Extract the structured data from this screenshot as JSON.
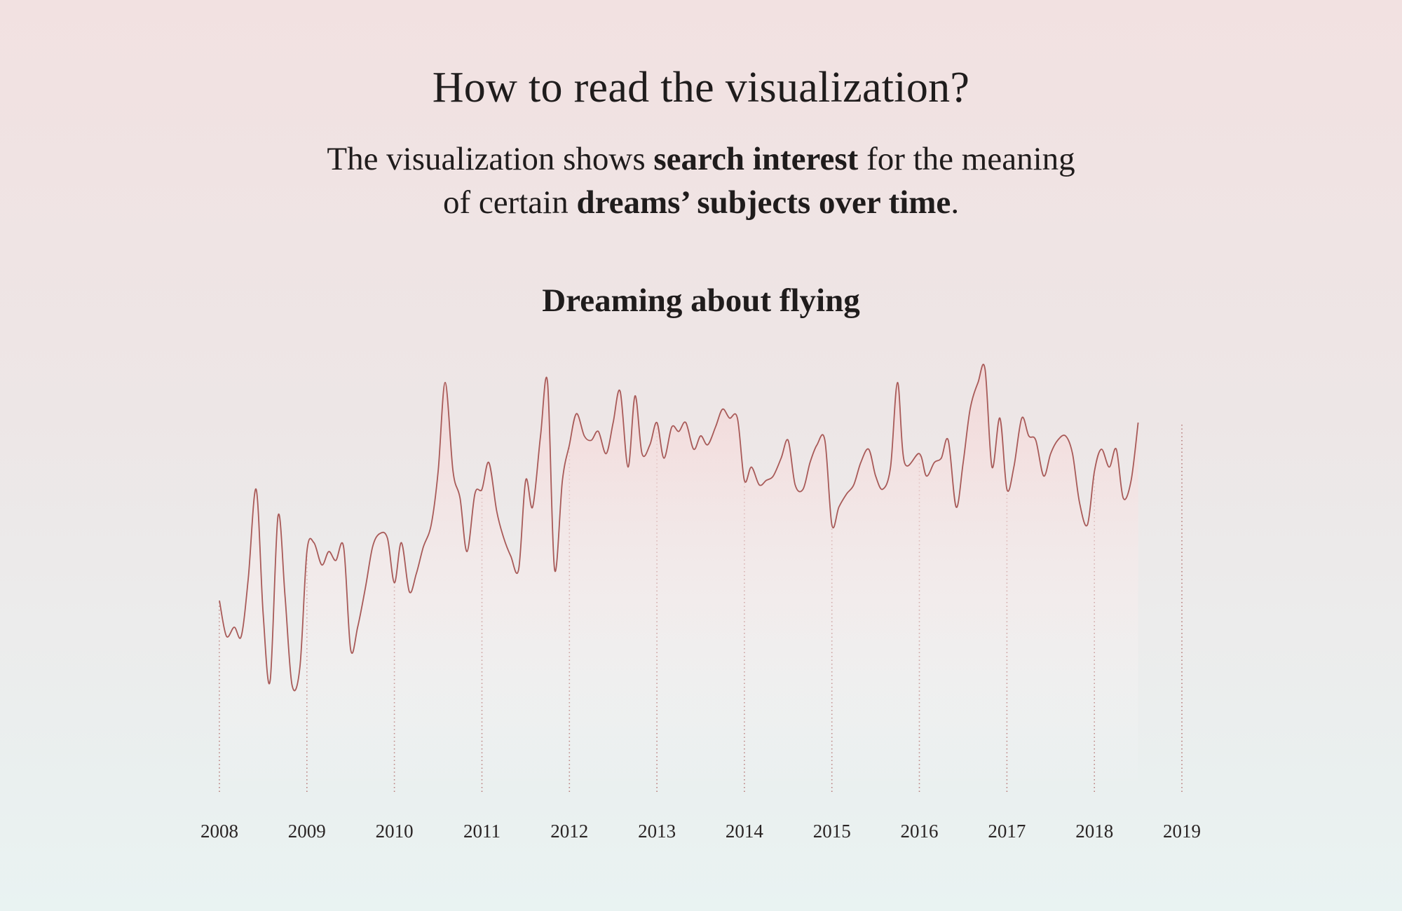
{
  "heading": "How to read the visualization?",
  "intro": {
    "part1": "The visualization shows ",
    "bold1": "search interest",
    "part2": " for the meaning",
    "part3": "of certain ",
    "bold2": "dreams’ subjects over time",
    "part4": "."
  },
  "colors": {
    "line": "#a85a58",
    "area_top": "#f2d6d6",
    "gridline": "#b77c7a",
    "text": "#1f1c1c"
  },
  "chart_data": {
    "type": "line",
    "title": "Dreaming about flying",
    "xlabel": "",
    "ylabel": "",
    "xlim": [
      2008,
      2019
    ],
    "ylim": [
      0,
      100
    ],
    "ticks": [
      "2008",
      "2009",
      "2010",
      "2011",
      "2012",
      "2013",
      "2014",
      "2015",
      "2016",
      "2017",
      "2018",
      "2019"
    ],
    "grid": "vertical dotted lines at each year",
    "series": [
      {
        "values": [
          [
            2008.0,
            43
          ],
          [
            2008.08,
            35
          ],
          [
            2008.17,
            37
          ],
          [
            2008.25,
            35
          ],
          [
            2008.33,
            48
          ],
          [
            2008.42,
            68
          ],
          [
            2008.5,
            40
          ],
          [
            2008.58,
            25
          ],
          [
            2008.67,
            62
          ],
          [
            2008.75,
            44
          ],
          [
            2008.83,
            24
          ],
          [
            2008.92,
            28
          ],
          [
            2009.0,
            54
          ],
          [
            2009.08,
            56
          ],
          [
            2009.17,
            51
          ],
          [
            2009.25,
            54
          ],
          [
            2009.33,
            52
          ],
          [
            2009.42,
            55
          ],
          [
            2009.5,
            32
          ],
          [
            2009.58,
            37
          ],
          [
            2009.67,
            46
          ],
          [
            2009.75,
            55
          ],
          [
            2009.83,
            58
          ],
          [
            2009.92,
            57
          ],
          [
            2010.0,
            47
          ],
          [
            2010.08,
            56
          ],
          [
            2010.17,
            45
          ],
          [
            2010.25,
            49
          ],
          [
            2010.33,
            55
          ],
          [
            2010.42,
            60
          ],
          [
            2010.5,
            72
          ],
          [
            2010.58,
            92
          ],
          [
            2010.67,
            72
          ],
          [
            2010.75,
            66
          ],
          [
            2010.83,
            54
          ],
          [
            2010.92,
            67
          ],
          [
            2011.0,
            68
          ],
          [
            2011.08,
            74
          ],
          [
            2011.17,
            63
          ],
          [
            2011.25,
            57
          ],
          [
            2011.33,
            53
          ],
          [
            2011.42,
            50
          ],
          [
            2011.5,
            70
          ],
          [
            2011.58,
            64
          ],
          [
            2011.67,
            80
          ],
          [
            2011.75,
            92
          ],
          [
            2011.83,
            50
          ],
          [
            2011.92,
            70
          ],
          [
            2012.0,
            78
          ],
          [
            2012.08,
            85
          ],
          [
            2012.17,
            80
          ],
          [
            2012.25,
            79
          ],
          [
            2012.33,
            81
          ],
          [
            2012.42,
            76
          ],
          [
            2012.5,
            83
          ],
          [
            2012.58,
            90
          ],
          [
            2012.67,
            73
          ],
          [
            2012.75,
            89
          ],
          [
            2012.83,
            76
          ],
          [
            2012.92,
            78
          ],
          [
            2013.0,
            83
          ],
          [
            2013.08,
            75
          ],
          [
            2013.17,
            82
          ],
          [
            2013.25,
            81
          ],
          [
            2013.33,
            83
          ],
          [
            2013.42,
            77
          ],
          [
            2013.5,
            80
          ],
          [
            2013.58,
            78
          ],
          [
            2013.67,
            82
          ],
          [
            2013.75,
            86
          ],
          [
            2013.83,
            84
          ],
          [
            2013.92,
            84
          ],
          [
            2014.0,
            70
          ],
          [
            2014.08,
            73
          ],
          [
            2014.17,
            69
          ],
          [
            2014.25,
            70
          ],
          [
            2014.33,
            71
          ],
          [
            2014.42,
            75
          ],
          [
            2014.5,
            79
          ],
          [
            2014.58,
            69
          ],
          [
            2014.67,
            68
          ],
          [
            2014.75,
            74
          ],
          [
            2014.83,
            78
          ],
          [
            2014.92,
            79
          ],
          [
            2015.0,
            60
          ],
          [
            2015.08,
            64
          ],
          [
            2015.17,
            67
          ],
          [
            2015.25,
            69
          ],
          [
            2015.33,
            74
          ],
          [
            2015.42,
            77
          ],
          [
            2015.5,
            71
          ],
          [
            2015.58,
            68
          ],
          [
            2015.67,
            73
          ],
          [
            2015.75,
            92
          ],
          [
            2015.83,
            74
          ],
          [
            2016.0,
            76
          ],
          [
            2016.08,
            71
          ],
          [
            2016.17,
            74
          ],
          [
            2016.25,
            75
          ],
          [
            2016.33,
            79
          ],
          [
            2016.42,
            64
          ],
          [
            2016.5,
            74
          ],
          [
            2016.58,
            86
          ],
          [
            2016.67,
            92
          ],
          [
            2016.75,
            95
          ],
          [
            2016.83,
            73
          ],
          [
            2016.92,
            84
          ],
          [
            2017.0,
            68
          ],
          [
            2017.08,
            73
          ],
          [
            2017.17,
            84
          ],
          [
            2017.25,
            80
          ],
          [
            2017.33,
            79
          ],
          [
            2017.42,
            71
          ],
          [
            2017.5,
            76
          ],
          [
            2017.58,
            79
          ],
          [
            2017.67,
            80
          ],
          [
            2017.75,
            76
          ],
          [
            2017.83,
            65
          ],
          [
            2017.92,
            60
          ],
          [
            2018.0,
            72
          ],
          [
            2018.08,
            77
          ],
          [
            2018.17,
            73
          ],
          [
            2018.25,
            77
          ],
          [
            2018.33,
            66
          ],
          [
            2018.42,
            70
          ],
          [
            2018.5,
            83
          ]
        ]
      }
    ]
  }
}
